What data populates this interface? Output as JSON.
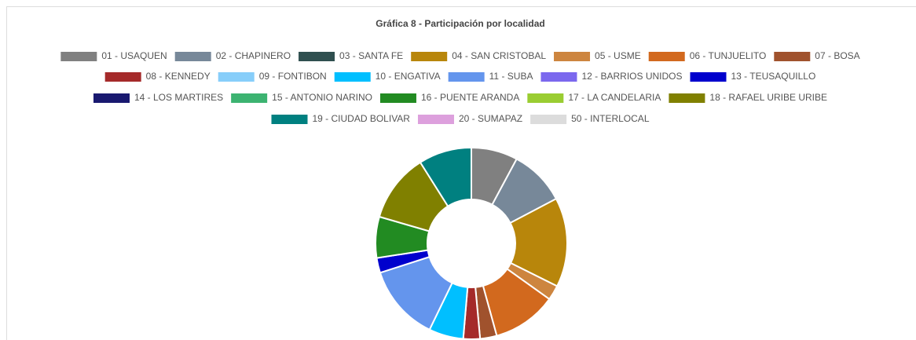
{
  "chart_data": {
    "type": "donut",
    "title": "Gráfica 8 - Participación por localidad",
    "categories": [
      "01 - USAQUEN",
      "02 - CHAPINERO",
      "03 - SANTA FE",
      "04 - SAN CRISTOBAL",
      "05 - USME",
      "06 - TUNJUELITO",
      "07 - BOSA",
      "08 - KENNEDY",
      "09 - FONTIBON",
      "10 - ENGATIVA",
      "11 - SUBA",
      "12 - BARRIOS UNIDOS",
      "13 - TEUSAQUILLO",
      "14 - LOS MARTIRES",
      "15 - ANTONIO NARINO",
      "16 - PUENTE ARANDA",
      "17 - LA CANDELARIA",
      "18 - RAFAEL URIBE URIBE",
      "19 - CIUDAD BOLIVAR",
      "20 - SUMAPAZ",
      "50 - INTERLOCAL"
    ],
    "values": [
      7.8,
      9.4,
      0,
      15,
      2.5,
      10.8,
      2.8,
      2.8,
      0,
      5.8,
      12.8,
      0,
      2.5,
      0,
      0,
      6.9,
      0,
      11.5,
      8.9,
      0,
      0
    ],
    "colors": [
      "#808080",
      "#778899",
      "#2f4f4f",
      "#b8860b",
      "#cd853f",
      "#d2691e",
      "#a0522d",
      "#a52a2a",
      "#87cefa",
      "#00bfff",
      "#6495ed",
      "#7b68ee",
      "#0000cd",
      "#191970",
      "#3cb371",
      "#228b22",
      "#9acd32",
      "#808000",
      "#008080",
      "#dda0dd",
      "#dcdcdc"
    ]
  }
}
